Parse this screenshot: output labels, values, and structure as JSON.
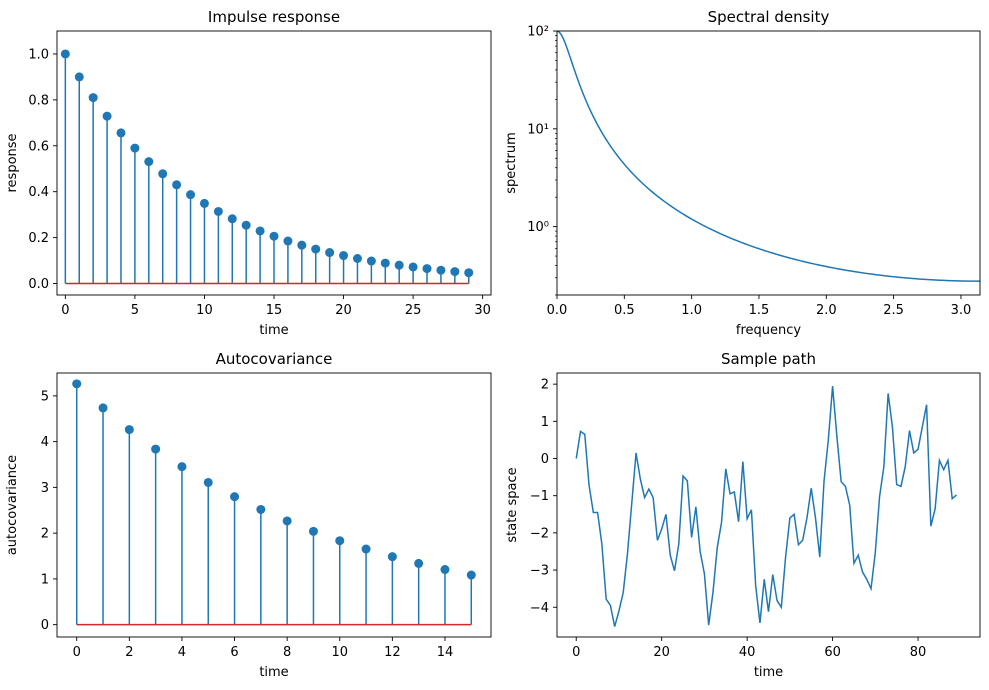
{
  "colors": {
    "series": "#1f77b4",
    "baseline": "#d62728"
  },
  "chart_data": [
    {
      "type": "stem",
      "title": "Impulse response",
      "xlabel": "time",
      "ylabel": "response",
      "xlim": [
        -0.6,
        30.6
      ],
      "ylim": [
        -0.05,
        1.1
      ],
      "xticks": [
        0,
        5,
        10,
        15,
        20,
        25,
        30
      ],
      "yticks": [
        0.0,
        0.2,
        0.4,
        0.6,
        0.8,
        1.0
      ],
      "ytick_labels": [
        "0.0",
        "0.2",
        "0.4",
        "0.6",
        "0.8",
        "1.0"
      ],
      "x": [
        0,
        1,
        2,
        3,
        4,
        5,
        6,
        7,
        8,
        9,
        10,
        11,
        12,
        13,
        14,
        15,
        16,
        17,
        18,
        19,
        20,
        21,
        22,
        23,
        24,
        25,
        26,
        27,
        28,
        29
      ],
      "y": [
        1.0,
        0.9,
        0.81,
        0.729,
        0.656,
        0.59,
        0.531,
        0.478,
        0.43,
        0.387,
        0.349,
        0.314,
        0.282,
        0.254,
        0.229,
        0.206,
        0.185,
        0.167,
        0.15,
        0.135,
        0.122,
        0.109,
        0.098,
        0.089,
        0.08,
        0.072,
        0.065,
        0.058,
        0.052,
        0.047
      ],
      "baseline": 0
    },
    {
      "type": "line",
      "title": "Spectral density",
      "xlabel": "frequency",
      "ylabel": "spectrum",
      "yscale": "log",
      "xlim": [
        0,
        3.1416
      ],
      "ylim": [
        0.2,
        100
      ],
      "xticks": [
        0.0,
        0.5,
        1.0,
        1.5,
        2.0,
        2.5,
        3.0
      ],
      "xtick_labels": [
        "0.0",
        "0.5",
        "1.0",
        "1.5",
        "2.0",
        "2.5",
        "3.0"
      ],
      "yticks": [
        1,
        10,
        100
      ],
      "ytick_labels": [
        "10⁰",
        "10¹",
        "10²"
      ],
      "spectrum": {
        "phi": 0.9,
        "sigma2": 1.0
      }
    },
    {
      "type": "stem",
      "title": "Autocovariance",
      "xlabel": "time",
      "ylabel": "autocovariance",
      "xlim": [
        -0.75,
        15.75
      ],
      "ylim": [
        -0.27,
        5.5
      ],
      "xticks": [
        0,
        2,
        4,
        6,
        8,
        10,
        12,
        14
      ],
      "yticks": [
        0,
        1,
        2,
        3,
        4,
        5
      ],
      "x": [
        0,
        1,
        2,
        3,
        4,
        5,
        6,
        7,
        8,
        9,
        10,
        11,
        12,
        13,
        14,
        15
      ],
      "y": [
        5.263,
        4.737,
        4.263,
        3.837,
        3.453,
        3.108,
        2.797,
        2.517,
        2.266,
        2.039,
        1.835,
        1.652,
        1.486,
        1.338,
        1.204,
        1.084
      ],
      "baseline": 0
    },
    {
      "type": "line",
      "title": "Sample path",
      "xlabel": "time",
      "ylabel": "state space",
      "xlim": [
        -4.5,
        94.5
      ],
      "ylim": [
        -4.8,
        2.3
      ],
      "xticks": [
        0,
        20,
        40,
        60,
        80
      ],
      "yticks": [
        -4,
        -3,
        -2,
        -1,
        0,
        1,
        2
      ],
      "ytick_labels": [
        "−4",
        "−3",
        "−2",
        "−1",
        "0",
        "1",
        "2"
      ],
      "x": [
        0,
        1,
        2,
        3,
        4,
        5,
        6,
        7,
        8,
        9,
        10,
        11,
        12,
        13,
        14,
        15,
        16,
        17,
        18,
        19,
        20,
        21,
        22,
        23,
        24,
        25,
        26,
        27,
        28,
        29,
        30,
        31,
        32,
        33,
        34,
        35,
        36,
        37,
        38,
        39,
        40,
        41,
        42,
        43,
        44,
        45,
        46,
        47,
        48,
        49,
        50,
        51,
        52,
        53,
        54,
        55,
        56,
        57,
        58,
        59,
        60,
        61,
        62,
        63,
        64,
        65,
        66,
        67,
        68,
        69,
        70,
        71,
        72,
        73,
        74,
        75,
        76,
        77,
        78,
        79,
        80,
        81,
        82,
        83,
        84,
        85,
        86,
        87,
        88,
        89
      ],
      "y": [
        0.0,
        0.73,
        0.65,
        -0.72,
        -1.45,
        -1.45,
        -2.3,
        -3.78,
        -3.95,
        -4.52,
        -4.1,
        -3.6,
        -2.55,
        -1.2,
        0.15,
        -0.55,
        -1.05,
        -0.82,
        -1.05,
        -2.2,
        -1.9,
        -1.5,
        -2.6,
        -3.02,
        -2.3,
        -0.47,
        -0.6,
        -2.12,
        -1.3,
        -2.5,
        -3.1,
        -4.48,
        -3.6,
        -2.4,
        -1.72,
        -0.28,
        -0.95,
        -0.9,
        -1.7,
        -0.08,
        -1.62,
        -1.38,
        -3.42,
        -4.42,
        -3.25,
        -4.12,
        -3.12,
        -3.82,
        -4.0,
        -2.65,
        -1.6,
        -1.5,
        -2.32,
        -2.2,
        -1.6,
        -0.8,
        -1.6,
        -2.65,
        -0.6,
        0.5,
        1.95,
        0.6,
        -0.62,
        -0.75,
        -1.25,
        -2.82,
        -2.6,
        -3.05,
        -3.25,
        -3.5,
        -2.52,
        -1.02,
        -0.22,
        1.75,
        0.85,
        -0.7,
        -0.75,
        -0.22,
        0.75,
        0.15,
        0.25,
        0.85,
        1.45,
        -1.82,
        -1.35,
        -0.05,
        -0.3,
        -0.05,
        -1.08,
        -0.98
      ]
    }
  ]
}
